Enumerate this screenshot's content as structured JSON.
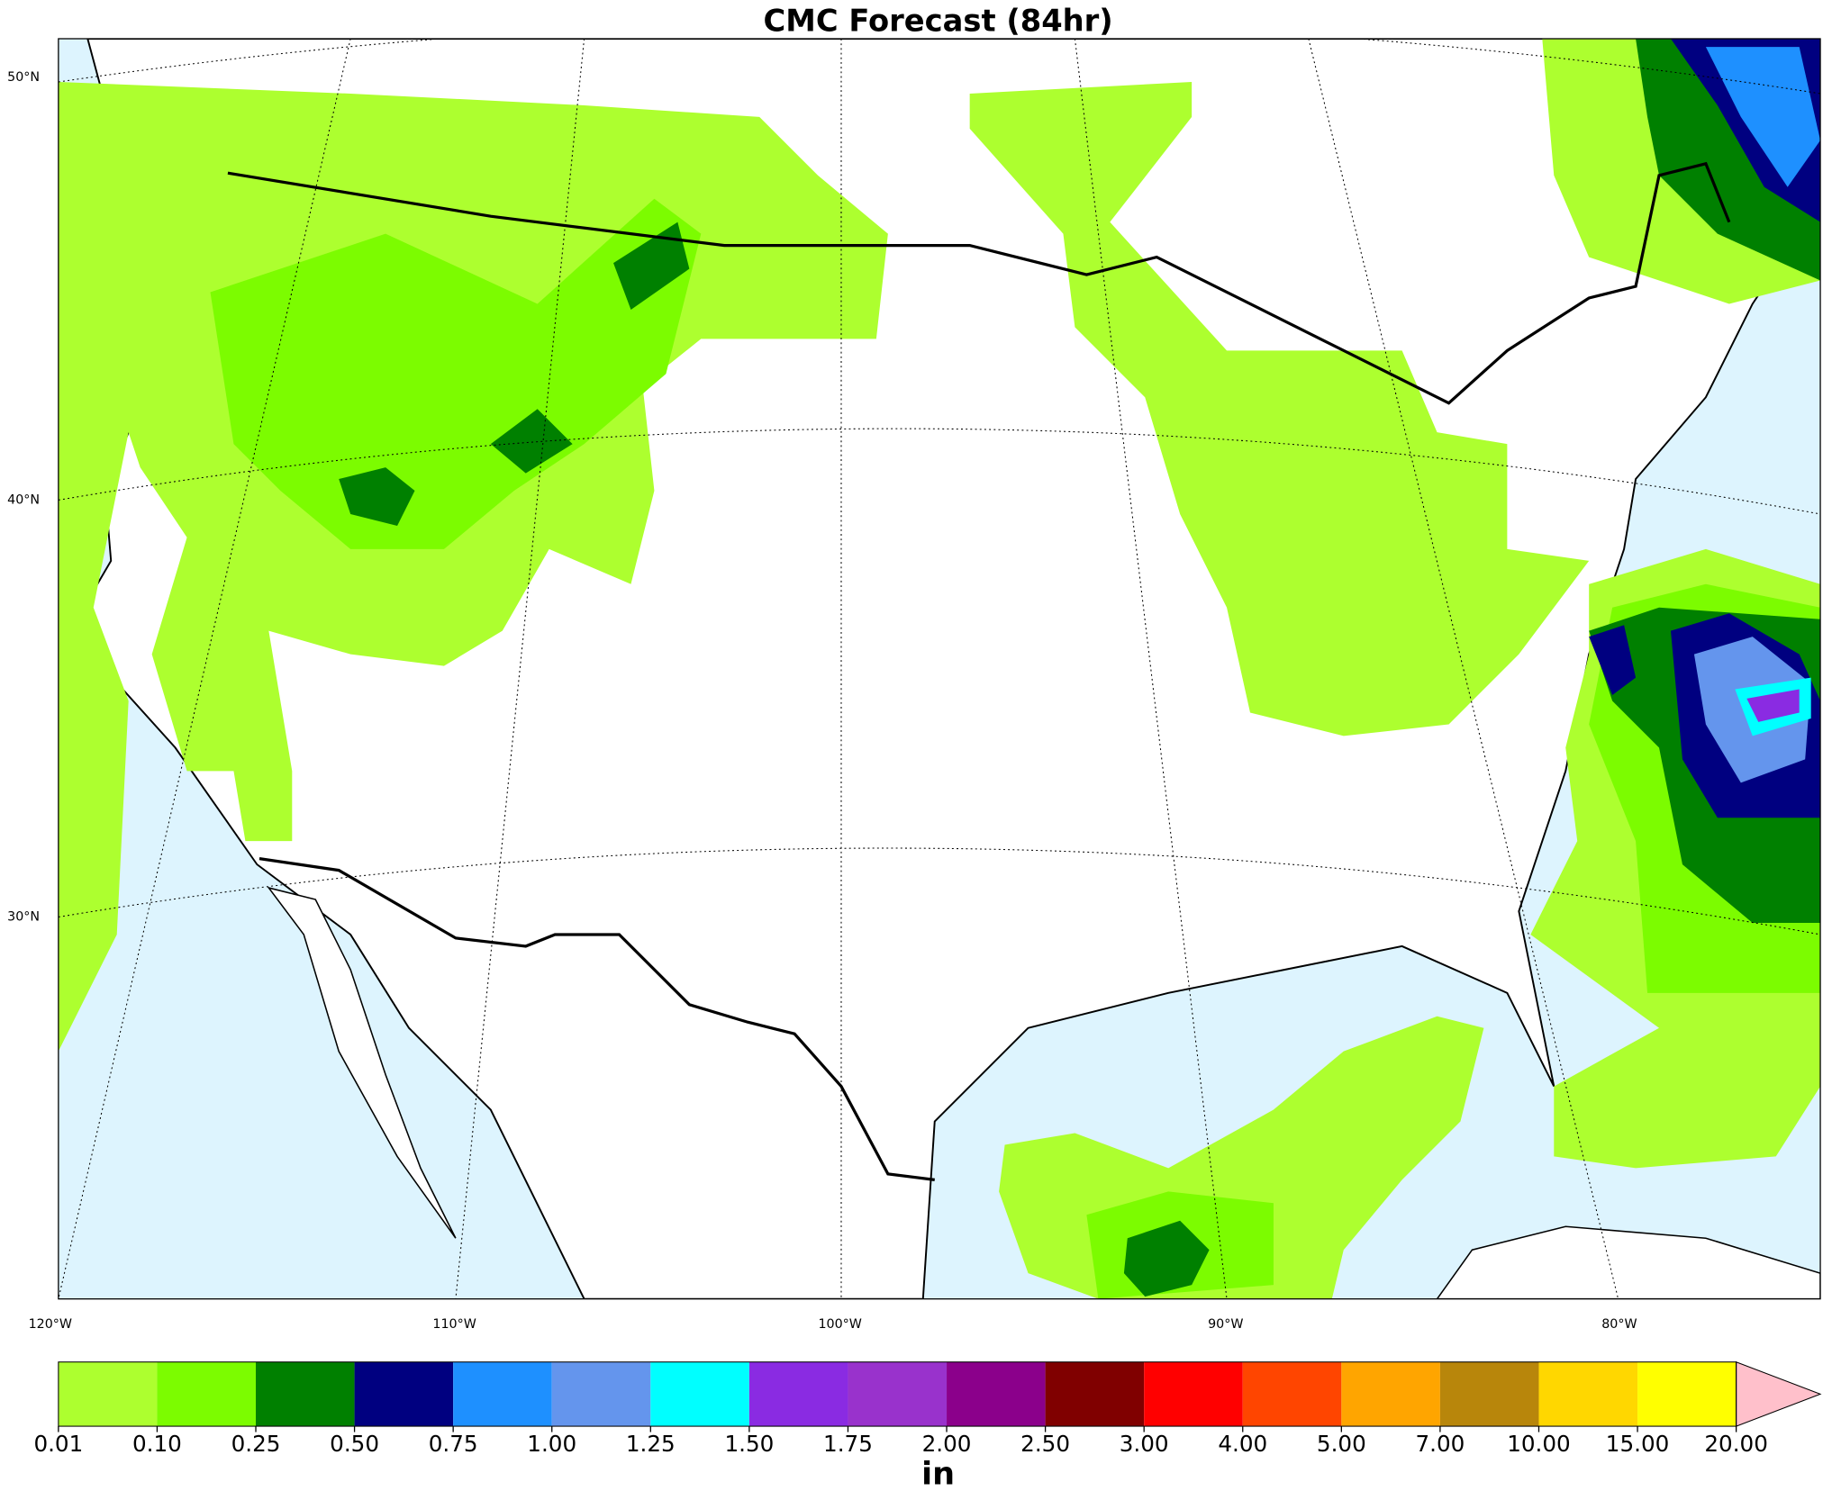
{
  "title": "CMC Forecast (84hr)",
  "lat_labels": [
    "50°N",
    "40°N",
    "30°N"
  ],
  "lon_labels": [
    "120°W",
    "110°W",
    "100°W",
    "90°W",
    "80°W"
  ],
  "colorbar": {
    "label": "in",
    "ticks": [
      0.01,
      {
        "value": 0.1,
        "label": "0.10"
      },
      0.25,
      {
        "value": 0.5,
        "label": "0.50"
      },
      0.75,
      {
        "value": 1,
        "label": "1.00"
      },
      1.25,
      {
        "value": 1.5,
        "label": "1.50"
      },
      1.75,
      {
        "value": 2,
        "label": "2.00"
      },
      {
        "value": 2.5,
        "label": "2.50"
      },
      {
        "value": 3,
        "label": "3.00"
      },
      {
        "value": 4,
        "label": "4.00"
      },
      {
        "value": 5,
        "label": "5.00"
      },
      {
        "value": 7,
        "label": "7.00"
      },
      {
        "value": 10,
        "label": "10.00"
      },
      {
        "value": 15,
        "label": "15.00"
      },
      {
        "value": 20,
        "label": "20.00"
      }
    ],
    "colors": [
      "#adff2f",
      "#7cfc00",
      "#008000",
      "#000080",
      "#1e90ff",
      "#6495ed",
      "#00ffff",
      "#8a2be2",
      "#9932cc",
      "#8b008b",
      "#800000",
      "#ff0000",
      "#ff4500",
      "#ffa500",
      "#b8860b",
      "#ffd700",
      "#ffff00"
    ],
    "extend_color": "#ffc0cb"
  }
}
